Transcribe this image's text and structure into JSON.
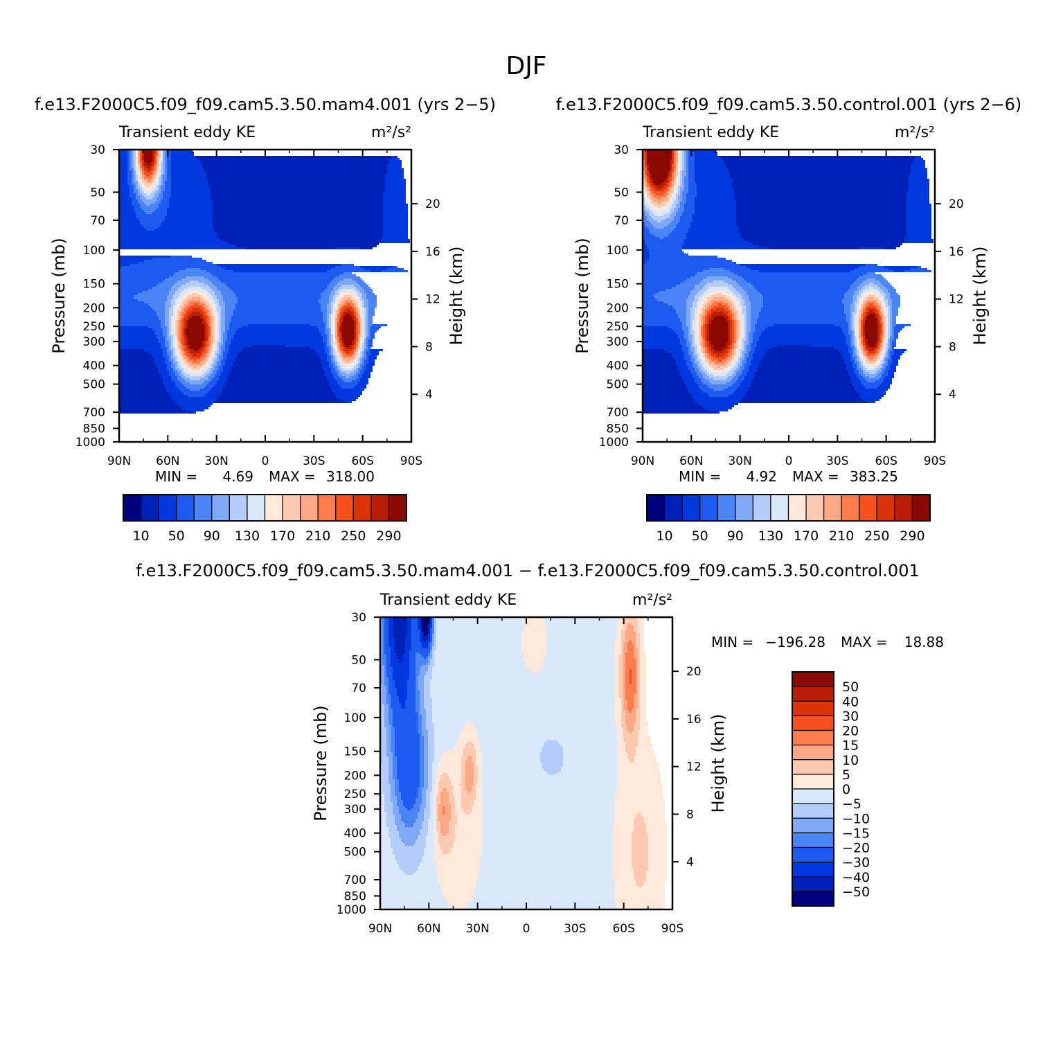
{
  "page": {
    "title": "DJF",
    "palette_full": [
      "#00007f",
      "#0021b8",
      "#0038e0",
      "#1f5af0",
      "#4a84f5",
      "#7fa8f7",
      "#b4ccfa",
      "#dae8fc",
      "#ffe8d9",
      "#fdc9b0",
      "#fca884",
      "#fb7c4c",
      "#f6501e",
      "#dd3308",
      "#b81d05",
      "#8a0a03"
    ],
    "panel_names": [
      "mam4",
      "control",
      "difference"
    ]
  },
  "chart_data": [
    {
      "type": "heatmap",
      "subtitle": "f.e13.F2000C5.f09_f09.cam5.3.50.mam4.001 (yrs 2−5)",
      "left_label": "Transient eddy KE",
      "right_label": "m²/s²",
      "ylabel": "Pressure (mb)",
      "ylabel_right": "Height (km)",
      "x_ticks": [
        "90N",
        "60N",
        "30N",
        "0",
        "30S",
        "60S",
        "90S"
      ],
      "y_ticks": [
        "30",
        "50",
        "70",
        "100",
        "150",
        "200",
        "250",
        "300",
        "400",
        "500",
        "700",
        "850",
        "1000"
      ],
      "y_ticks_right": [
        "20",
        "16",
        "12",
        "8",
        "4"
      ],
      "xlim": [
        90,
        -90
      ],
      "ylim": [
        1000,
        30
      ],
      "y_scale": "log",
      "min_label": "MIN =",
      "min_value": "4.69",
      "max_label": "MAX =",
      "max_value": "318.00",
      "levels": [
        10,
        30,
        50,
        70,
        90,
        110,
        130,
        150,
        170,
        190,
        210,
        230,
        250,
        270,
        290
      ],
      "colorbar_labels": [
        "10",
        "50",
        "90",
        "130",
        "170",
        "210",
        "250",
        "290"
      ],
      "colorbar_orientation": "horizontal",
      "features": [
        {
          "lat": 43,
          "p": 280,
          "amp": 300,
          "lat_width": 13,
          "logp_width": 0.22
        },
        {
          "lat": -51,
          "p": 270,
          "amp": 300,
          "lat_width": 9,
          "logp_width": 0.2
        },
        {
          "lat": 72,
          "p": 30,
          "amp": 295,
          "lat_width": 8,
          "logp_width": 0.22
        }
      ]
    },
    {
      "type": "heatmap",
      "subtitle": "f.e13.F2000C5.f09_f09.cam5.3.50.control.001 (yrs 2−6)",
      "left_label": "Transient eddy KE",
      "right_label": "m²/s²",
      "ylabel": "Pressure (mb)",
      "ylabel_right": "Height (km)",
      "x_ticks": [
        "90N",
        "60N",
        "30N",
        "0",
        "30S",
        "60S",
        "90S"
      ],
      "y_ticks": [
        "30",
        "50",
        "70",
        "100",
        "150",
        "200",
        "250",
        "300",
        "400",
        "500",
        "700",
        "850",
        "1000"
      ],
      "y_ticks_right": [
        "20",
        "16",
        "12",
        "8",
        "4"
      ],
      "xlim": [
        90,
        -90
      ],
      "ylim": [
        1000,
        30
      ],
      "y_scale": "log",
      "min_label": "MIN =",
      "min_value": "4.92",
      "max_label": "MAX =",
      "max_value": "383.25",
      "levels": [
        10,
        30,
        50,
        70,
        90,
        110,
        130,
        150,
        170,
        190,
        210,
        230,
        250,
        270,
        290
      ],
      "colorbar_labels": [
        "10",
        "50",
        "90",
        "130",
        "170",
        "210",
        "250",
        "290"
      ],
      "colorbar_orientation": "horizontal",
      "features": [
        {
          "lat": 43,
          "p": 280,
          "amp": 300,
          "lat_width": 14,
          "logp_width": 0.22
        },
        {
          "lat": -51,
          "p": 270,
          "amp": 305,
          "lat_width": 9,
          "logp_width": 0.2
        },
        {
          "lat": 80,
          "p": 30,
          "amp": 380,
          "lat_width": 12,
          "logp_width": 0.3
        }
      ]
    },
    {
      "type": "heatmap",
      "subtitle": "f.e13.F2000C5.f09_f09.cam5.3.50.mam4.001 − f.e13.F2000C5.f09_f09.cam5.3.50.control.001",
      "left_label": "Transient eddy KE",
      "right_label": "m²/s²",
      "ylabel": "Pressure (mb)",
      "ylabel_right": "Height (km)",
      "x_ticks": [
        "90N",
        "60N",
        "30N",
        "0",
        "30S",
        "60S",
        "90S"
      ],
      "y_ticks": [
        "30",
        "50",
        "70",
        "100",
        "150",
        "200",
        "250",
        "300",
        "400",
        "500",
        "700",
        "850",
        "1000"
      ],
      "y_ticks_right": [
        "20",
        "16",
        "12",
        "8",
        "4"
      ],
      "xlim": [
        90,
        -90
      ],
      "ylim": [
        1000,
        30
      ],
      "y_scale": "log",
      "min_label": "MIN =",
      "min_value": "−196.28",
      "max_label": "MAX =",
      "max_value": "18.88",
      "levels": [
        -50,
        -40,
        -30,
        -20,
        -15,
        -10,
        -5,
        0,
        5,
        10,
        15,
        20,
        30,
        40,
        50
      ],
      "colorbar_labels": [
        "50",
        "40",
        "30",
        "20",
        "15",
        "10",
        "5",
        "0",
        "−5",
        "−10",
        "−15",
        "−20",
        "−30",
        "−40",
        "−50"
      ],
      "colorbar_orientation": "vertical",
      "colors": [
        "#00007f",
        "#0021b8",
        "#0038e0",
        "#1f5af0",
        "#4a84f5",
        "#7fa8f7",
        "#b4ccfa",
        "#dae8fc",
        "#ffe8d9",
        "#fdc9b0",
        "#fca884",
        "#fb7c4c",
        "#f6501e",
        "#dd3308",
        "#b81d05",
        "#8a0a03"
      ]
    }
  ]
}
